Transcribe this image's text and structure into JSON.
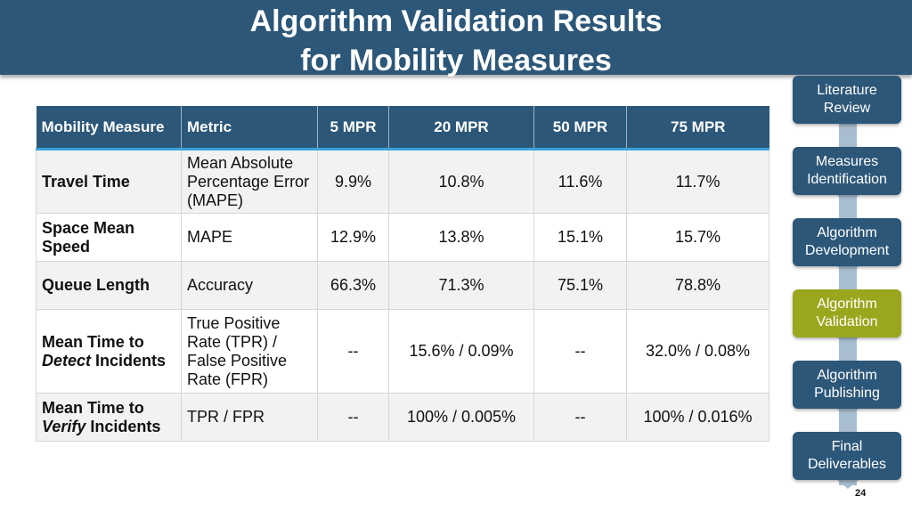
{
  "title": {
    "line1": "Algorithm Validation Results",
    "line2": "for Mobility Measures"
  },
  "table": {
    "headers": [
      "Mobility Measure",
      "Metric",
      "5 MPR",
      "20 MPR",
      "50 MPR",
      "75 MPR"
    ],
    "rows": [
      {
        "measure_a": "Travel Time",
        "measure_em": "",
        "measure_b": "",
        "metric": "Mean Absolute Percentage Error (MAPE)",
        "values": [
          "9.9%",
          "10.8%",
          "11.6%",
          "11.7%"
        ]
      },
      {
        "measure_a": "Space Mean Speed",
        "measure_em": "",
        "measure_b": "",
        "metric": "MAPE",
        "values": [
          "12.9%",
          "13.8%",
          "15.1%",
          "15.7%"
        ]
      },
      {
        "measure_a": "Queue Length",
        "measure_em": "",
        "measure_b": "",
        "metric": "Accuracy",
        "values": [
          "66.3%",
          "71.3%",
          "75.1%",
          "78.8%"
        ]
      },
      {
        "measure_a": "Mean Time to ",
        "measure_em": "Detect",
        "measure_b": " Incidents",
        "metric": "True Positive Rate (TPR) / False Positive Rate (FPR)",
        "values": [
          "--",
          "15.6% / 0.09%",
          "--",
          "32.0% / 0.08%"
        ]
      },
      {
        "measure_a": "Mean Time to ",
        "measure_em": "Verify",
        "measure_b": " Incidents",
        "metric": "TPR / FPR",
        "values": [
          "--",
          "100% / 0.005%",
          "--",
          "100% / 0.016%"
        ]
      }
    ]
  },
  "flow": {
    "steps": [
      {
        "line1": "Literature",
        "line2": "Review",
        "active": false
      },
      {
        "line1": "Measures",
        "line2": "Identification",
        "active": false
      },
      {
        "line1": "Algorithm",
        "line2": "Development",
        "active": false
      },
      {
        "line1": "Algorithm",
        "line2": "Validation",
        "active": true
      },
      {
        "line1": "Algorithm",
        "line2": "Publishing",
        "active": false
      },
      {
        "line1": "Final",
        "line2": "Deliverables",
        "active": false
      }
    ],
    "active_color": "#9aa71e",
    "default_color": "#2c5779"
  },
  "page_number": "24"
}
